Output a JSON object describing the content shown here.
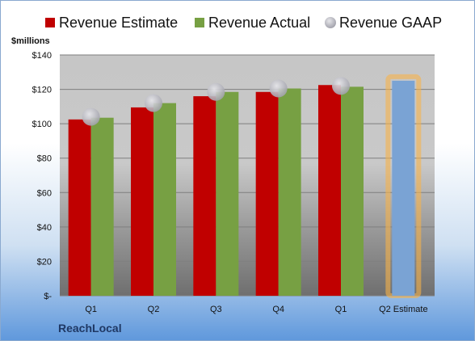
{
  "chart_data": {
    "type": "bar",
    "unit_label": "$millions",
    "categories": [
      "Q1",
      "Q2",
      "Q3",
      "Q4",
      "Q1",
      "Q2 Estimate"
    ],
    "series": [
      {
        "name": "Revenue Estimate",
        "kind": "bar",
        "color": "#c00000",
        "values": [
          102.5,
          109.5,
          116,
          118.5,
          122.5,
          null
        ]
      },
      {
        "name": "Revenue Actual",
        "kind": "bar",
        "color": "#77a043",
        "values": [
          103.5,
          112,
          118.5,
          120.5,
          121.5,
          null
        ]
      },
      {
        "name": "Revenue GAAP",
        "kind": "marker",
        "color": "#b4b4bc",
        "values": [
          104,
          112,
          118.5,
          120.5,
          122,
          null
        ]
      }
    ],
    "forecast": {
      "category_index": 5,
      "value": 125,
      "color": "#7aa3d4",
      "glow_color": "#f7b24a"
    },
    "y_ticks": [
      {
        "value": 0,
        "label": "$-"
      },
      {
        "value": 20,
        "label": "$20"
      },
      {
        "value": 40,
        "label": "$40"
      },
      {
        "value": 60,
        "label": "$60"
      },
      {
        "value": 80,
        "label": "$80"
      },
      {
        "value": 100,
        "label": "$100"
      },
      {
        "value": 120,
        "label": "$120"
      },
      {
        "value": 140,
        "label": "$140"
      }
    ],
    "ylim": [
      0,
      140
    ],
    "grid": true,
    "legend_position": "top",
    "title": "",
    "xlabel": "",
    "ylabel": ""
  },
  "brand": "ReachLocal"
}
